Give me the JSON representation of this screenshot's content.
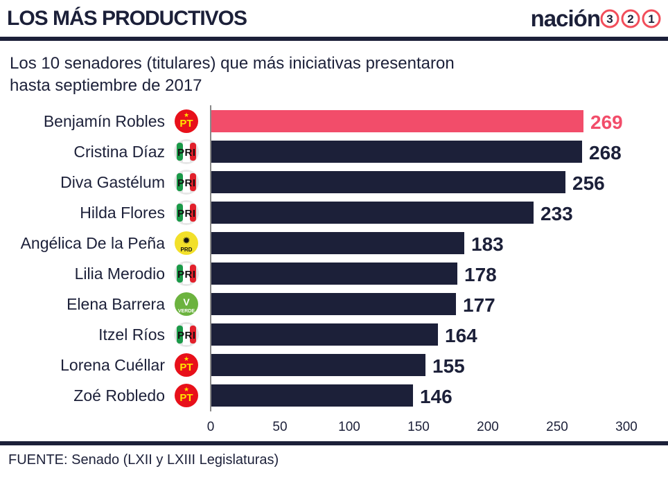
{
  "header": {
    "title": "LOS MÁS PRODUCTIVOS",
    "logo_text": "nación",
    "logo_digits": [
      "3",
      "2",
      "1"
    ]
  },
  "subtitle_lines": [
    "Los 10 senadores (titulares) que más iniciativas presentaron",
    "hasta septiembre de 2017"
  ],
  "source": "FUENTE: Senado (LXII y LXIII Legislaturas)",
  "colors": {
    "bar": "#1c2039",
    "highlight": "#f24d6a",
    "pt": "#e8101a",
    "pri_green": "#1a9a48",
    "pri_red": "#e2202b",
    "prd": "#f2e02a",
    "verde": "#6cb33f"
  },
  "chart_data": {
    "type": "bar",
    "orientation": "horizontal",
    "categories": [
      "Benjamín Robles",
      "Cristina Díaz",
      "Diva Gastélum",
      "Hilda Flores",
      "Angélica De la Peña",
      "Lilia Merodio",
      "Elena Barrera",
      "Itzel Ríos",
      "Lorena Cuéllar",
      "Zoé Robledo"
    ],
    "parties": [
      "PT",
      "PRI",
      "PRI",
      "PRI",
      "PRD",
      "PRI",
      "VERDE",
      "PRI",
      "PT",
      "PT"
    ],
    "values": [
      269,
      268,
      256,
      233,
      183,
      178,
      177,
      164,
      155,
      146
    ],
    "highlight_index": 0,
    "xlim": [
      0,
      300
    ],
    "xticks": [
      "0",
      "50",
      "100",
      "150",
      "200",
      "250",
      "300"
    ],
    "grid": false
  }
}
